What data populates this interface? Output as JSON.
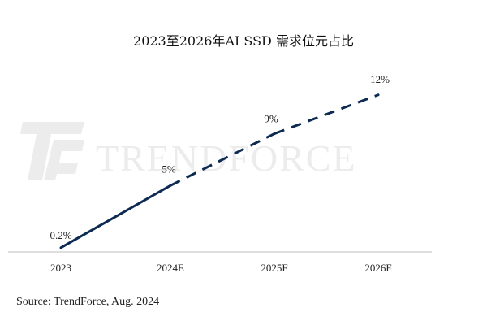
{
  "chart_data": {
    "type": "line",
    "title": "2023至2026年AI SSD 需求位元占比",
    "xlabel": "",
    "ylabel": "",
    "categories": [
      "2023",
      "2024E",
      "2025F",
      "2026F"
    ],
    "values": [
      0.2,
      5,
      9,
      12
    ],
    "data_labels": [
      "0.2%",
      "5%",
      "9%",
      "12%"
    ],
    "segment_styles": [
      "solid",
      "dashed",
      "dashed"
    ],
    "ylim": [
      0,
      12.8
    ],
    "grid": false,
    "legend": "none",
    "line_color": "#0d2a52"
  },
  "watermark": {
    "text": "TRENDFORCE",
    "icon": "trendforce-logo-icon"
  },
  "source": "Source: TrendForce, Aug. 2024",
  "colors": {
    "line": "#0d2a52",
    "axis": "#bdbdbd",
    "watermark": "#ececec"
  }
}
